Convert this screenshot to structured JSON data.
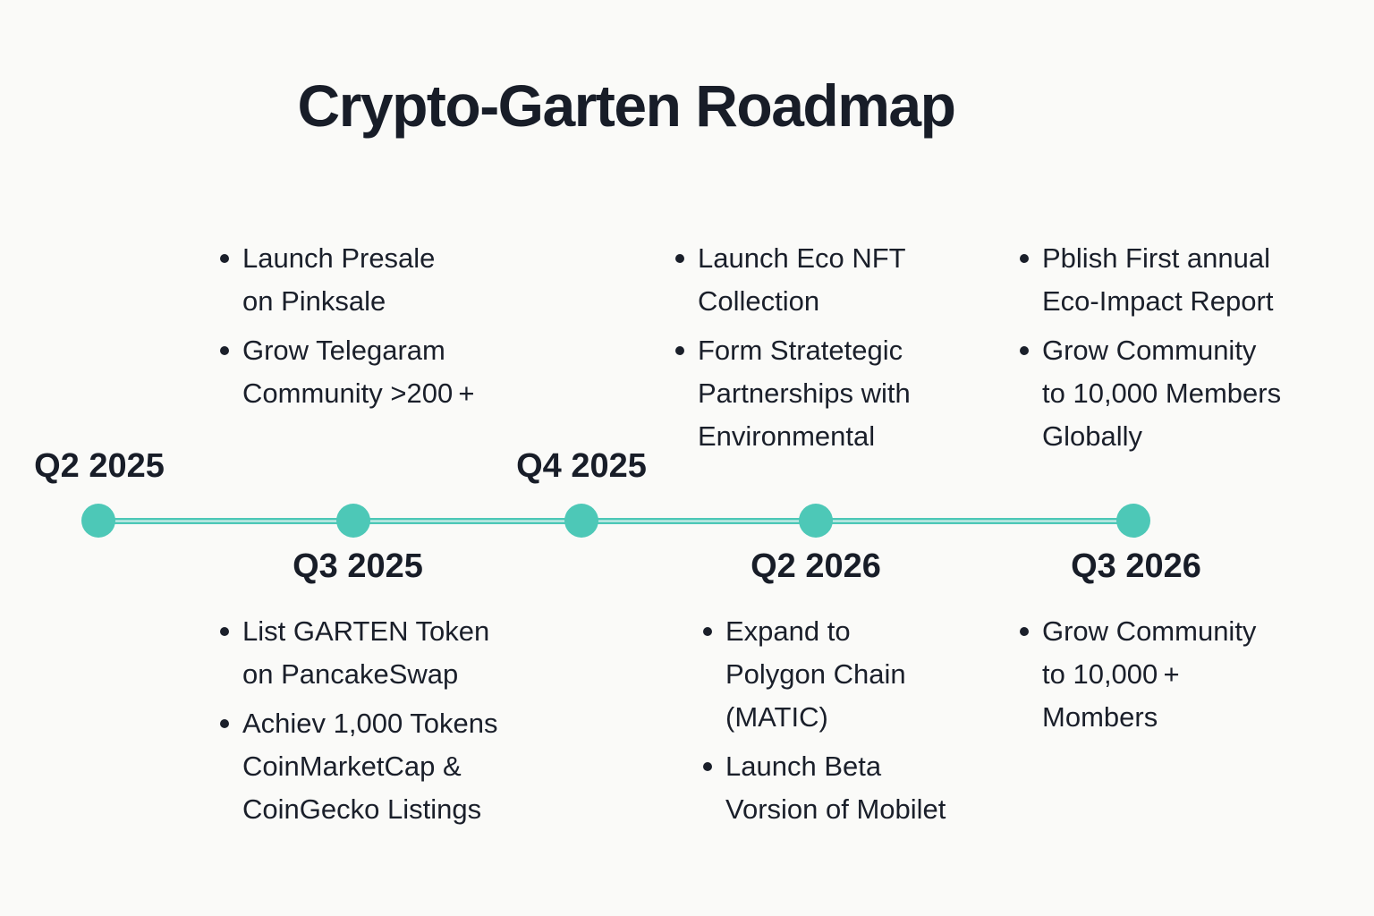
{
  "title": "Crypto-Garten Roadmap",
  "colors": {
    "accent": "#4dc8b7",
    "accent_light": "#d4f1ec",
    "text": "#1a1f2a",
    "background": "#fafaf8"
  },
  "timeline": {
    "dot_count": 5,
    "quarters_above": [
      "Q2 2025",
      "Q4 2025"
    ],
    "quarters_below": [
      "Q3 2025",
      "Q2 2026",
      "Q3 2026"
    ]
  },
  "blocks": {
    "top": [
      {
        "items": [
          "Launch Presale\non Pinksale",
          "Grow Telegaram\nCommunity >200 +"
        ]
      },
      {
        "items": [
          "Launch Eco NFT\nCollection",
          "Form Stratetegic\nPartnerships with\nEnvironmental"
        ]
      },
      {
        "items": [
          "Pblish First annual\nEco-Impact Report",
          "Grow Community\nto 10,000 Members\nGlobally"
        ]
      }
    ],
    "bottom": [
      {
        "items": [
          "List GARTEN Token\non PancakeSwap",
          "Achiev 1,000 Tokens\nCoinMarketCap &\nCoinGecko Listings"
        ]
      },
      {
        "items": [
          "Expand to\nPolygon Chain\n(MATIC)",
          "Launch Beta\nVorsion of Mobilet"
        ]
      },
      {
        "items": [
          "Grow Community\nto 10,000 +\nMombers"
        ]
      }
    ]
  }
}
